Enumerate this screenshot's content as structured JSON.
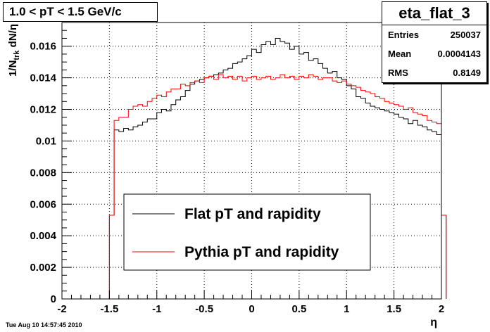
{
  "chart_data": {
    "type": "line",
    "title": "1.0 < pT < 1.5 GeV/c",
    "xlabel": "η",
    "ylabel_main": "1/N",
    "ylabel_sub": "trk",
    "ylabel_rest": " dN/η",
    "xlim": [
      -2,
      2
    ],
    "ylim": [
      0,
      0.0175
    ],
    "x_ticks": [
      -2,
      -1.5,
      -1,
      -0.5,
      0,
      0.5,
      1,
      1.5,
      2
    ],
    "x_tick_labels": [
      "-2",
      "-1.5",
      "-1",
      "-0.5",
      "0",
      "0.5",
      "1",
      "1.5",
      "2"
    ],
    "y_ticks": [
      0,
      0.002,
      0.004,
      0.006,
      0.008,
      0.01,
      0.012,
      0.014,
      0.016
    ],
    "y_tick_labels": [
      "0",
      "0.002",
      "0.004",
      "0.006",
      "0.008",
      "0.01",
      "0.012",
      "0.014",
      "0.016"
    ],
    "grid": true,
    "legend_position": "bottom-center",
    "bin_edges_start": -1.5,
    "bin_width": 0.05,
    "series": [
      {
        "name": "Flat pT and rapidity",
        "color": "#000000",
        "values": [
          0.0053,
          0.0107,
          0.0106,
          0.0108,
          0.0107,
          0.0109,
          0.011,
          0.0112,
          0.0114,
          0.0114,
          0.0118,
          0.012,
          0.0119,
          0.0123,
          0.0126,
          0.0128,
          0.0132,
          0.0136,
          0.0138,
          0.0139,
          0.014,
          0.0141,
          0.0142,
          0.0143,
          0.0145,
          0.0146,
          0.0149,
          0.015,
          0.0152,
          0.0154,
          0.0158,
          0.0156,
          0.0161,
          0.0163,
          0.0161,
          0.0165,
          0.0163,
          0.0162,
          0.0158,
          0.016,
          0.0155,
          0.0156,
          0.0151,
          0.0152,
          0.0149,
          0.0146,
          0.0143,
          0.0144,
          0.014,
          0.0139,
          0.0135,
          0.0133,
          0.0128,
          0.0127,
          0.0124,
          0.0122,
          0.0121,
          0.012,
          0.0119,
          0.0118,
          0.0117,
          0.0115,
          0.0114,
          0.0111,
          0.0113,
          0.011,
          0.0109,
          0.0107,
          0.0106,
          0.0104,
          0.0053
        ]
      },
      {
        "name": "Pythia pT and rapidity",
        "color": "#ff0000",
        "values": [
          0.0053,
          0.0113,
          0.0115,
          0.0115,
          0.012,
          0.0122,
          0.0123,
          0.0122,
          0.0125,
          0.0127,
          0.0129,
          0.0128,
          0.0131,
          0.0133,
          0.0133,
          0.0136,
          0.0135,
          0.0137,
          0.0138,
          0.0137,
          0.014,
          0.0141,
          0.0139,
          0.0142,
          0.014,
          0.0141,
          0.0139,
          0.0141,
          0.0138,
          0.014,
          0.0141,
          0.0139,
          0.014,
          0.0141,
          0.0139,
          0.014,
          0.0142,
          0.014,
          0.0141,
          0.0139,
          0.0141,
          0.014,
          0.0142,
          0.0141,
          0.0139,
          0.014,
          0.014,
          0.0138,
          0.0137,
          0.0138,
          0.0136,
          0.0135,
          0.0134,
          0.0132,
          0.0131,
          0.013,
          0.0128,
          0.0127,
          0.0125,
          0.0124,
          0.0123,
          0.0122,
          0.012,
          0.0121,
          0.0118,
          0.0117,
          0.0116,
          0.0113,
          0.0112,
          0.0111,
          0.0053
        ]
      }
    ]
  },
  "stats": {
    "name": "eta_flat_3",
    "rows": [
      {
        "label": "Entries",
        "value": "250037"
      },
      {
        "label": "Mean",
        "value": "0.0004143"
      },
      {
        "label": "RMS",
        "value": "0.8149"
      }
    ]
  },
  "footer": "Tue Aug 10 14:57:45 2010"
}
